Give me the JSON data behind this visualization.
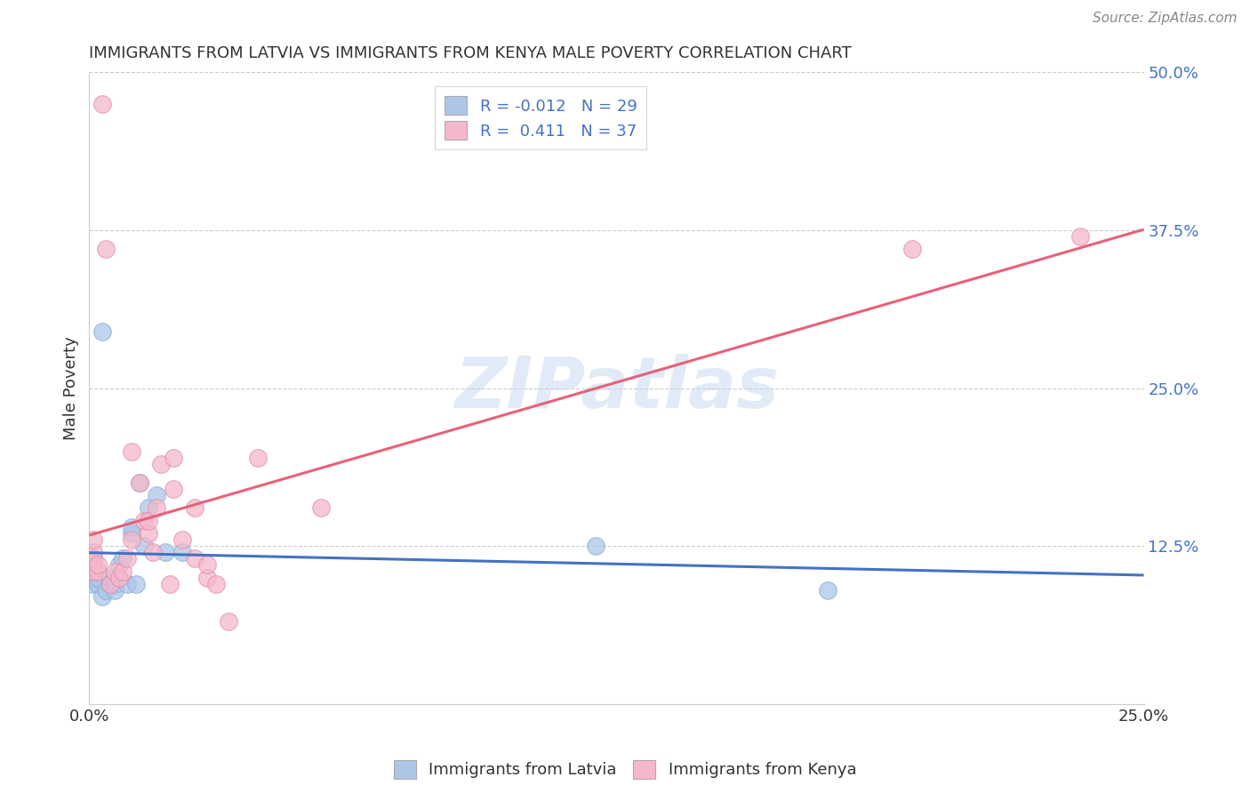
{
  "title": "IMMIGRANTS FROM LATVIA VS IMMIGRANTS FROM KENYA MALE POVERTY CORRELATION CHART",
  "source": "Source: ZipAtlas.com",
  "ylabel": "Male Poverty",
  "xlim": [
    0.0,
    0.25
  ],
  "ylim": [
    0.0,
    0.5
  ],
  "xticks": [
    0.0,
    0.05,
    0.1,
    0.15,
    0.2,
    0.25
  ],
  "yticks": [
    0.0,
    0.125,
    0.25,
    0.375,
    0.5
  ],
  "xticklabels": [
    "0.0%",
    "",
    "",
    "",
    "",
    "25.0%"
  ],
  "yticklabels": [
    "",
    "12.5%",
    "25.0%",
    "37.5%",
    "50.0%"
  ],
  "latvia_R": -0.012,
  "latvia_N": 29,
  "kenya_R": 0.411,
  "kenya_N": 37,
  "latvia_color": "#adc6e8",
  "kenya_color": "#f5b8cb",
  "latvia_line_color": "#4472c4",
  "kenya_line_color": "#e8607a",
  "grid_color": "#cccccc",
  "watermark": "ZIPatlas",
  "legend_labels": [
    "Immigrants from Latvia",
    "Immigrants from Kenya"
  ],
  "latvia_scatter_x": [
    0.001,
    0.001,
    0.001,
    0.001,
    0.001,
    0.002,
    0.002,
    0.003,
    0.004,
    0.005,
    0.005,
    0.006,
    0.006,
    0.007,
    0.007,
    0.008,
    0.009,
    0.01,
    0.01,
    0.011,
    0.012,
    0.013,
    0.014,
    0.016,
    0.018,
    0.022,
    0.003,
    0.12,
    0.175
  ],
  "latvia_scatter_y": [
    0.095,
    0.1,
    0.105,
    0.11,
    0.115,
    0.095,
    0.1,
    0.085,
    0.09,
    0.095,
    0.1,
    0.09,
    0.095,
    0.1,
    0.11,
    0.115,
    0.095,
    0.135,
    0.14,
    0.095,
    0.175,
    0.125,
    0.155,
    0.165,
    0.12,
    0.12,
    0.295,
    0.125,
    0.09
  ],
  "kenya_scatter_x": [
    0.001,
    0.001,
    0.001,
    0.001,
    0.001,
    0.002,
    0.002,
    0.003,
    0.004,
    0.005,
    0.006,
    0.007,
    0.008,
    0.009,
    0.01,
    0.01,
    0.012,
    0.013,
    0.014,
    0.014,
    0.015,
    0.016,
    0.017,
    0.019,
    0.02,
    0.02,
    0.022,
    0.025,
    0.025,
    0.028,
    0.028,
    0.03,
    0.033,
    0.04,
    0.055,
    0.195,
    0.235
  ],
  "kenya_scatter_y": [
    0.105,
    0.11,
    0.115,
    0.12,
    0.13,
    0.105,
    0.11,
    0.475,
    0.36,
    0.095,
    0.105,
    0.1,
    0.105,
    0.115,
    0.13,
    0.2,
    0.175,
    0.145,
    0.135,
    0.145,
    0.12,
    0.155,
    0.19,
    0.095,
    0.17,
    0.195,
    0.13,
    0.115,
    0.155,
    0.1,
    0.11,
    0.095,
    0.065,
    0.195,
    0.155,
    0.36,
    0.37
  ]
}
